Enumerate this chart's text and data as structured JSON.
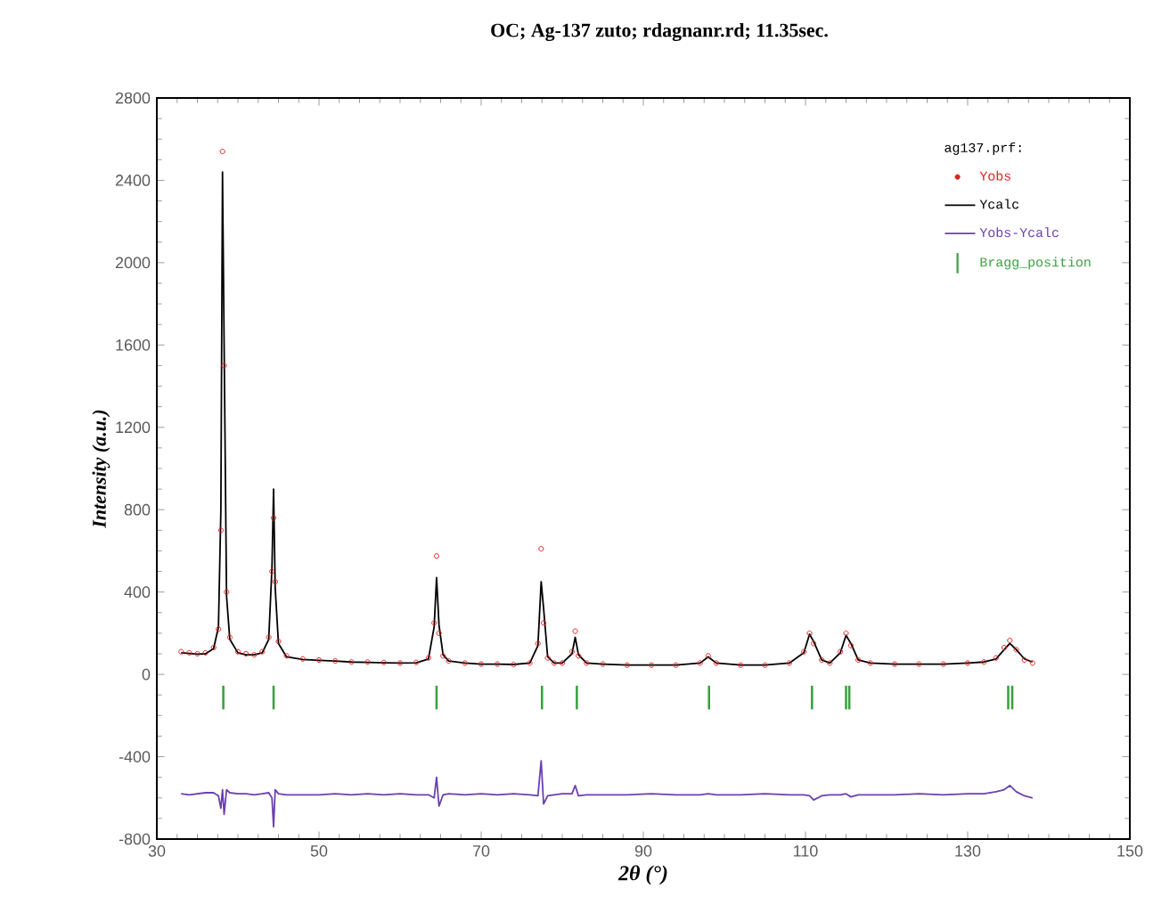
{
  "chart_data": {
    "type": "scatter",
    "title": "OC; Ag-137 zuto; rdagnanr.rd; 11.35sec.",
    "xlabel": "2θ (°)",
    "ylabel": "Intensity (a.u.)",
    "legend_title": "ag137.prf:",
    "legend": "top right",
    "xlim": [
      30,
      150
    ],
    "xticks": [
      30,
      50,
      70,
      90,
      110,
      130,
      150
    ],
    "ylim": [
      -800,
      2800
    ],
    "yticks": [
      -800,
      -400,
      0,
      400,
      800,
      1200,
      1600,
      2000,
      2400,
      2800
    ],
    "x": [
      33,
      34,
      35,
      36,
      37,
      37.6,
      37.9,
      38.1,
      38.3,
      38.6,
      39,
      40,
      41,
      42,
      43,
      43.8,
      44.2,
      44.4,
      44.6,
      45,
      46,
      48,
      50,
      52,
      54,
      56,
      58,
      60,
      62,
      63.5,
      64.2,
      64.5,
      64.8,
      65.3,
      66,
      68,
      70,
      72,
      74,
      76,
      77,
      77.4,
      77.7,
      78.2,
      79,
      80,
      81.2,
      81.6,
      82,
      83,
      85,
      88,
      91,
      94,
      97,
      98,
      99,
      102,
      105,
      108,
      109.8,
      110.5,
      111,
      112,
      113,
      114.3,
      115,
      115.6,
      116.5,
      118,
      121,
      124,
      127,
      130,
      132,
      133.5,
      134.5,
      135.2,
      136,
      137,
      138
    ],
    "series": [
      {
        "name": "Yobs",
        "marker": "circle",
        "color": "#e02020",
        "values": [
          110,
          105,
          100,
          105,
          130,
          220,
          700,
          2540,
          1500,
          400,
          180,
          110,
          100,
          95,
          110,
          180,
          500,
          760,
          450,
          160,
          90,
          75,
          70,
          65,
          60,
          60,
          58,
          55,
          58,
          80,
          250,
          575,
          200,
          90,
          65,
          55,
          50,
          50,
          48,
          55,
          150,
          610,
          250,
          80,
          55,
          55,
          110,
          210,
          90,
          55,
          50,
          45,
          45,
          45,
          55,
          90,
          55,
          45,
          45,
          55,
          110,
          200,
          150,
          70,
          55,
          110,
          200,
          140,
          70,
          55,
          50,
          50,
          50,
          55,
          60,
          80,
          130,
          165,
          120,
          70,
          55
        ]
      },
      {
        "name": "Ycalc",
        "type": "line",
        "marker": "none",
        "color": "#000000",
        "values": [
          105,
          102,
          98,
          100,
          125,
          230,
          800,
          2440,
          1600,
          380,
          170,
          105,
          95,
          95,
          105,
          170,
          520,
          900,
          420,
          150,
          85,
          72,
          68,
          65,
          60,
          58,
          56,
          55,
          56,
          75,
          230,
          470,
          240,
          95,
          65,
          55,
          50,
          50,
          48,
          55,
          140,
          450,
          320,
          85,
          55,
          55,
          100,
          180,
          95,
          55,
          50,
          45,
          45,
          45,
          55,
          85,
          55,
          45,
          45,
          55,
          105,
          195,
          160,
          70,
          55,
          105,
          190,
          150,
          70,
          55,
          50,
          50,
          50,
          55,
          60,
          75,
          120,
          150,
          120,
          75,
          60
        ]
      },
      {
        "name": "Yobs-Ycalc",
        "type": "line",
        "marker": "none",
        "color": "#6a40b0",
        "values": [
          -580,
          -585,
          -580,
          -575,
          -575,
          -590,
          -650,
          -560,
          -680,
          -560,
          -575,
          -580,
          -580,
          -585,
          -580,
          -575,
          -600,
          -740,
          -560,
          -580,
          -585,
          -585,
          -585,
          -580,
          -585,
          -580,
          -585,
          -580,
          -585,
          -585,
          -600,
          -500,
          -640,
          -585,
          -580,
          -585,
          -580,
          -585,
          -580,
          -585,
          -590,
          -420,
          -630,
          -590,
          -585,
          -580,
          -580,
          -540,
          -590,
          -585,
          -585,
          -585,
          -580,
          -585,
          -585,
          -580,
          -585,
          -585,
          -580,
          -585,
          -585,
          -590,
          -610,
          -590,
          -585,
          -585,
          -580,
          -595,
          -585,
          -585,
          -585,
          -580,
          -585,
          -580,
          -580,
          -570,
          -560,
          -540,
          -570,
          -590,
          -600
        ]
      },
      {
        "name": "Bragg_position",
        "type": "bar",
        "color": "#3aa040",
        "x": [
          38.2,
          44.4,
          64.5,
          77.5,
          81.8,
          98.1,
          110.8,
          115.0,
          115.4,
          135.0,
          135.5
        ],
        "base": [
          -170,
          -170,
          -170,
          -170,
          -170,
          -170,
          -170,
          -170,
          -170,
          -170,
          -170
        ],
        "values": [
          115,
          115,
          115,
          115,
          115,
          115,
          115,
          115,
          115,
          115,
          115
        ]
      }
    ]
  }
}
